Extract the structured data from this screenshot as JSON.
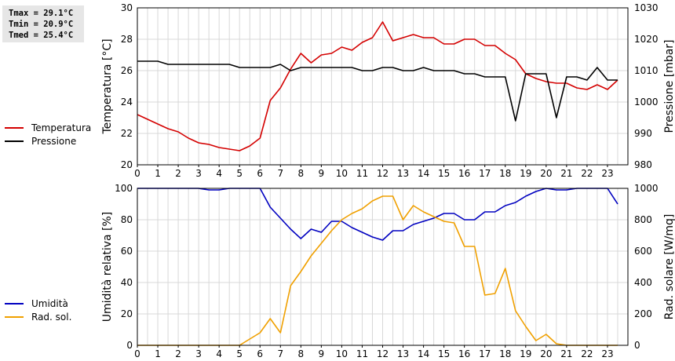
{
  "stats": {
    "tmax": "Tmax = 29.1°C",
    "tmin": "Tmin = 20.9°C",
    "tmed": "Tmed = 25.4°C"
  },
  "chart_data": [
    {
      "type": "line",
      "ylabel": "Temperatura [°C]",
      "ylabel2": "Pressione [mbar]",
      "ylim": [
        20,
        30
      ],
      "ylim2": [
        980,
        1030
      ],
      "yticks": [
        "20",
        "22",
        "24",
        "26",
        "28",
        "30"
      ],
      "yticks2": [
        "980",
        "990",
        "1000",
        "1010",
        "1020",
        "1030"
      ],
      "xlim": [
        0,
        24
      ],
      "xticks": [
        "0",
        "1",
        "2",
        "3",
        "4",
        "5",
        "6",
        "7",
        "8",
        "9",
        "10",
        "11",
        "12",
        "13",
        "14",
        "15",
        "16",
        "17",
        "18",
        "19",
        "20",
        "21",
        "22",
        "23"
      ],
      "grid": true,
      "legend_placement": "left",
      "series": [
        {
          "name": "Temperatura",
          "color": "#d40000",
          "axis": "left",
          "x": [
            0,
            0.5,
            1,
            1.5,
            2,
            2.5,
            3,
            3.5,
            4,
            4.5,
            5,
            5.5,
            6,
            6.5,
            7,
            7.5,
            8,
            8.5,
            9,
            9.5,
            10,
            10.5,
            11,
            11.5,
            12,
            12.5,
            13,
            13.5,
            14,
            14.5,
            15,
            15.5,
            16,
            16.5,
            17,
            17.5,
            18,
            18.5,
            19,
            19.5,
            20,
            20.5,
            21,
            21.5,
            22,
            22.5,
            23,
            23.5
          ],
          "y": [
            23.2,
            22.9,
            22.6,
            22.3,
            22.1,
            21.7,
            21.4,
            21.3,
            21.1,
            21.0,
            20.9,
            21.2,
            21.7,
            24.1,
            24.9,
            26.1,
            27.1,
            26.5,
            27.0,
            27.1,
            27.5,
            27.3,
            27.8,
            28.1,
            29.1,
            27.9,
            28.1,
            28.3,
            28.1,
            28.1,
            27.7,
            27.7,
            28.0,
            28.0,
            27.6,
            27.6,
            27.1,
            26.7,
            25.8,
            25.5,
            25.3,
            25.2,
            25.2,
            24.9,
            24.8,
            25.1,
            24.8,
            25.4
          ]
        },
        {
          "name": "Pressione",
          "color": "#000000",
          "axis": "right",
          "x": [
            0,
            0.5,
            1,
            1.5,
            2,
            2.5,
            3,
            3.5,
            4,
            4.5,
            5,
            5.5,
            6,
            6.5,
            7,
            7.5,
            8,
            8.5,
            9,
            9.5,
            10,
            10.5,
            11,
            11.5,
            12,
            12.5,
            13,
            13.5,
            14,
            14.5,
            15,
            15.5,
            16,
            16.5,
            17,
            17.5,
            18,
            18.5,
            19,
            19.5,
            20,
            20.5,
            21,
            21.5,
            22,
            22.5,
            23,
            23.5
          ],
          "y": [
            1013,
            1013,
            1013,
            1012,
            1012,
            1012,
            1012,
            1012,
            1012,
            1012,
            1011,
            1011,
            1011,
            1011,
            1012,
            1010,
            1011,
            1011,
            1011,
            1011,
            1011,
            1011,
            1010,
            1010,
            1011,
            1011,
            1010,
            1010,
            1011,
            1010,
            1010,
            1010,
            1009,
            1009,
            1008,
            1008,
            1008,
            994,
            1009,
            1009,
            1009,
            995,
            1008,
            1008,
            1007,
            1011,
            1007,
            1007
          ]
        }
      ]
    },
    {
      "type": "line",
      "ylabel": "Umidità relativa [%]",
      "ylabel2": "Rad. solare [W/mq]",
      "ylim": [
        0,
        100
      ],
      "ylim2": [
        0,
        1000
      ],
      "yticks": [
        "0",
        "20",
        "40",
        "60",
        "80",
        "100"
      ],
      "yticks2": [
        "0",
        "200",
        "400",
        "600",
        "800",
        "1000"
      ],
      "xlim": [
        0,
        24
      ],
      "xticks": [
        "0",
        "1",
        "2",
        "3",
        "4",
        "5",
        "6",
        "7",
        "8",
        "9",
        "10",
        "11",
        "12",
        "13",
        "14",
        "15",
        "16",
        "17",
        "18",
        "19",
        "20",
        "21",
        "22",
        "23"
      ],
      "grid": true,
      "legend_placement": "left",
      "series": [
        {
          "name": "Umidità",
          "color": "#0000c0",
          "axis": "left",
          "x": [
            0,
            0.5,
            1,
            1.5,
            2,
            2.5,
            3,
            3.5,
            4,
            4.5,
            5,
            5.5,
            6,
            6.5,
            7,
            7.5,
            8,
            8.5,
            9,
            9.5,
            10,
            10.5,
            11,
            11.5,
            12,
            12.5,
            13,
            13.5,
            14,
            14.5,
            15,
            15.5,
            16,
            16.5,
            17,
            17.5,
            18,
            18.5,
            19,
            19.5,
            20,
            20.5,
            21,
            21.5,
            22,
            22.5,
            23,
            23.5
          ],
          "y": [
            100,
            100,
            100,
            100,
            100,
            100,
            100,
            99,
            99,
            100,
            100,
            100,
            100,
            88,
            81,
            74,
            68,
            74,
            72,
            79,
            79,
            75,
            72,
            69,
            67,
            73,
            73,
            77,
            79,
            81,
            84,
            84,
            80,
            80,
            85,
            85,
            89,
            91,
            95,
            98,
            100,
            99,
            99,
            100,
            100,
            100,
            100,
            90
          ]
        },
        {
          "name": "Rad. sol.",
          "color": "#f0a000",
          "axis": "right",
          "x": [
            0,
            0.5,
            1,
            1.5,
            2,
            2.5,
            3,
            3.5,
            4,
            4.5,
            5,
            5.5,
            6,
            6.5,
            7,
            7.5,
            8,
            8.5,
            9,
            9.5,
            10,
            10.5,
            11,
            11.5,
            12,
            12.5,
            13,
            13.5,
            14,
            14.5,
            15,
            15.5,
            16,
            16.5,
            17,
            17.5,
            18,
            18.5,
            19,
            19.5,
            20,
            20.5,
            21,
            21.5,
            22,
            22.5,
            23,
            23.5
          ],
          "y": [
            0,
            0,
            0,
            0,
            0,
            0,
            0,
            0,
            0,
            0,
            0,
            40,
            80,
            170,
            80,
            380,
            470,
            570,
            650,
            730,
            800,
            840,
            870,
            920,
            950,
            950,
            800,
            890,
            850,
            820,
            790,
            780,
            630,
            630,
            320,
            330,
            490,
            220,
            120,
            30,
            70,
            10,
            0,
            0,
            0,
            0,
            0,
            0
          ]
        }
      ]
    }
  ]
}
